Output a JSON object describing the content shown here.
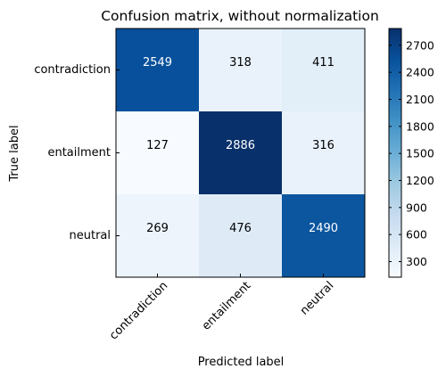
{
  "chart_data": {
    "type": "heatmap",
    "title": "Confusion matrix, without normalization",
    "xlabel": "Predicted label",
    "ylabel": "True label",
    "x_categories": [
      "contradiction",
      "entailment",
      "neutral"
    ],
    "y_categories": [
      "contradiction",
      "entailment",
      "neutral"
    ],
    "values": [
      [
        2549,
        318,
        411
      ],
      [
        127,
        2886,
        316
      ],
      [
        269,
        476,
        2490
      ]
    ],
    "colormap": "Blues",
    "colorbar": {
      "range": [
        127,
        2886
      ],
      "ticks": [
        300,
        600,
        900,
        1200,
        1500,
        1800,
        2100,
        2400,
        2700
      ]
    }
  }
}
